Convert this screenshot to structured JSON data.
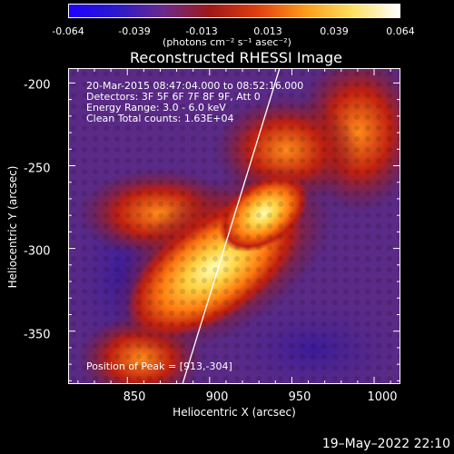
{
  "colorbar": {
    "ticks": [
      "-0.064",
      "-0.039",
      "-0.013",
      "0.013",
      "0.039",
      "0.064"
    ],
    "unit": "(photons cm⁻² s⁻¹ asec⁻²)",
    "colors": [
      "#1f00ff",
      "#2a1acc",
      "#6a2a8a",
      "#a01818",
      "#e04010",
      "#ff9a1a",
      "#ffe060",
      "#ffffff"
    ]
  },
  "title": "Reconstructed RHESSI Image",
  "info": {
    "time": "20-Mar-2015 08:47:04.000 to 08:52:16.000",
    "detectors": "Detectors: 3F 5F 6F 7F 8F 9F, Att 0",
    "energy": "Energy Range: 3.0 - 6.0 keV",
    "clean": "Clean    Total counts: 1.63E+04"
  },
  "peak_text": "Position of Peak = [913,-304]",
  "axes": {
    "xlabel": "Heliocentric X (arcsec)",
    "ylabel": "Heliocentric Y (arcsec)",
    "xticks": [
      "850",
      "900",
      "950",
      "1000"
    ],
    "yticks": [
      "-200",
      "-250",
      "-300",
      "-350"
    ],
    "xlim": [
      814,
      1016
    ],
    "ylim": [
      -382,
      -191
    ]
  },
  "footer_date": "19–May–2022 22:10"
}
